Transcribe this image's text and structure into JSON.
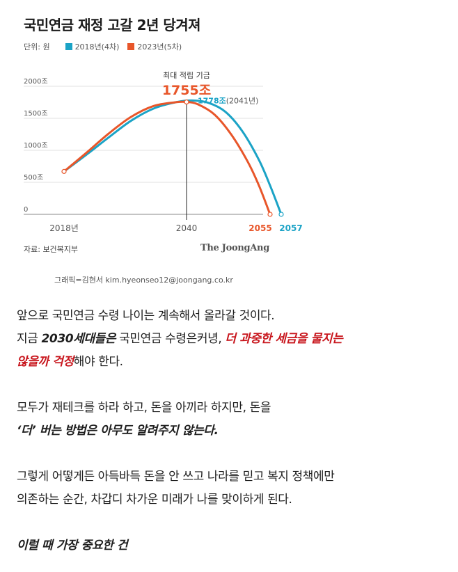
{
  "header": {
    "title": "국민연금 재정 고갈 2년 당겨져",
    "unit_label": "단위: 원",
    "legend": [
      {
        "label": "2018년(4차)",
        "color": "#1ba3c6"
      },
      {
        "label": "2023년(5차)",
        "color": "#e8562a"
      }
    ]
  },
  "chart_data": {
    "type": "line",
    "title": "국민연금 재정 고갈 2년 당겨져",
    "unit": "단위: 원",
    "ylim": [
      0,
      2000
    ],
    "xlim": [
      2018,
      2058
    ],
    "y_ticks": [
      "0",
      "500조",
      "1000조",
      "1500조",
      "2000조"
    ],
    "x_ticks": [
      "2018년",
      "2040",
      "2055",
      "2057"
    ],
    "grid": true,
    "legend_position": "top-left",
    "series": [
      {
        "name": "2018년(4차)",
        "color": "#1ba3c6",
        "x": [
          2018,
          2022,
          2026,
          2030,
          2034,
          2038,
          2041,
          2044,
          2047,
          2050,
          2053,
          2055,
          2057
        ],
        "y": [
          670,
          930,
          1200,
          1460,
          1650,
          1750,
          1778,
          1740,
          1600,
          1300,
          850,
          450,
          0
        ]
      },
      {
        "name": "2023년(5차)",
        "color": "#e8562a",
        "x": [
          2018,
          2022,
          2026,
          2030,
          2034,
          2038,
          2040,
          2042,
          2045,
          2048,
          2051,
          2053,
          2055
        ],
        "y": [
          670,
          960,
          1260,
          1520,
          1690,
          1750,
          1755,
          1720,
          1560,
          1250,
          820,
          450,
          0
        ]
      }
    ],
    "annotations": {
      "peak_label": "최대 적립 기금",
      "peak_value": "1755조",
      "peak_2018": "1778조",
      "peak_2018_year": "(2041년)",
      "depletion_2023": "2055",
      "depletion_2018": "2057"
    }
  },
  "footer": {
    "source": "자료: 보건복지부",
    "logo": "The JoongAng",
    "credit": "그래픽=김현서 kim.hyeonseo12@joongang.co.kr"
  },
  "article": {
    "p1": "앞으로 국민연금 수령 나이는 계속해서 올라갈 것이다.",
    "p2_a": "지금 ",
    "p2_b": "2030세대들은",
    "p2_c": " 국민연금 수령은커녕, ",
    "p2_d": "더 과중한 세금을 물지는",
    "p2_e": "않을까 걱정",
    "p2_f": "해야 한다.",
    "p3": "모두가 재테크를 하라 하고, 돈을 아끼라 하지만, 돈을",
    "p4": "‘더’ 버는 방법은 아무도 알려주지 않는다.",
    "p5": "그렇게 어떻게든 아득바득 돈을 안 쓰고 나라를 믿고 복지 정책에만",
    "p6": "의존하는 순간, 차갑디 차가운 미래가 나를 맞이하게 된다.",
    "p7": "이럴 때 가장 중요한 건"
  }
}
